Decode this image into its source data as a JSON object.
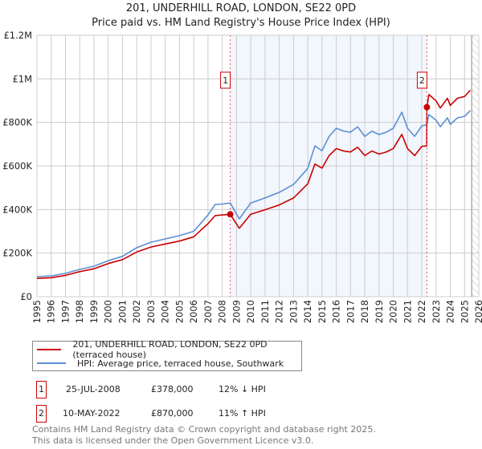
{
  "title": "201, UNDERHILL ROAD, LONDON, SE22 0PD",
  "subtitle": "Price paid vs. HM Land Registry's House Price Index (HPI)",
  "chart_data": {
    "type": "line",
    "title": "201, UNDERHILL ROAD, LONDON, SE22 0PD — Price paid vs. HM Land Registry's House Price Index (HPI)",
    "xlim": [
      1995,
      2026
    ],
    "ylim": [
      0,
      1200000
    ],
    "x_ticks": [
      1995,
      1996,
      1997,
      1998,
      1999,
      2000,
      2001,
      2002,
      2003,
      2004,
      2005,
      2006,
      2007,
      2008,
      2009,
      2010,
      2011,
      2012,
      2013,
      2014,
      2015,
      2016,
      2017,
      2018,
      2019,
      2020,
      2021,
      2022,
      2023,
      2024,
      2025,
      2026
    ],
    "y_ticks": [
      {
        "value": 0,
        "label": "£0"
      },
      {
        "value": 200000,
        "label": "£200K"
      },
      {
        "value": 400000,
        "label": "£400K"
      },
      {
        "value": 600000,
        "label": "£600K"
      },
      {
        "value": 800000,
        "label": "£800K"
      },
      {
        "value": 1000000,
        "label": "£1M"
      },
      {
        "value": 1200000,
        "label": "£1.2M"
      }
    ],
    "grid": true,
    "shaded_between_sales": [
      2008.56,
      2022.36
    ],
    "forecast_hatch_from": 2025.5,
    "series": [
      {
        "name": "201, UNDERHILL ROAD, LONDON, SE22 0PD (terraced house)",
        "color": "#cc0000",
        "points": [
          [
            1995,
            84
          ],
          [
            1996,
            87
          ],
          [
            1997,
            98
          ],
          [
            1998,
            115
          ],
          [
            1999,
            128
          ],
          [
            2000,
            152
          ],
          [
            2001,
            170
          ],
          [
            2002,
            205
          ],
          [
            2003,
            228
          ],
          [
            2004,
            242
          ],
          [
            2005,
            255
          ],
          [
            2006,
            275
          ],
          [
            2007,
            335
          ],
          [
            2007.5,
            372
          ],
          [
            2008,
            375
          ],
          [
            2008.56,
            378
          ],
          [
            2009.2,
            314
          ],
          [
            2010,
            378
          ],
          [
            2011,
            399
          ],
          [
            2012,
            421
          ],
          [
            2013,
            453
          ],
          [
            2014,
            518
          ],
          [
            2014.5,
            609
          ],
          [
            2015,
            590
          ],
          [
            2015.5,
            648
          ],
          [
            2016,
            680
          ],
          [
            2016.5,
            669
          ],
          [
            2017,
            664
          ],
          [
            2017.5,
            686
          ],
          [
            2018,
            648
          ],
          [
            2018.5,
            669
          ],
          [
            2019,
            655
          ],
          [
            2019.5,
            664
          ],
          [
            2020,
            680
          ],
          [
            2020.6,
            745
          ],
          [
            2021,
            680
          ],
          [
            2021.5,
            648
          ],
          [
            2022,
            690
          ],
          [
            2022.35,
            692
          ],
          [
            2022.36,
            870
          ],
          [
            2022.5,
            928
          ],
          [
            2023,
            899
          ],
          [
            2023.3,
            866
          ],
          [
            2023.8,
            911
          ],
          [
            2024,
            878
          ],
          [
            2024.5,
            911
          ],
          [
            2025,
            919
          ],
          [
            2025.4,
            948
          ]
        ]
      },
      {
        "name": "HPI: Average price, terraced house, Southwark",
        "color": "#5b8fd4",
        "points": [
          [
            1995,
            92
          ],
          [
            1996,
            95
          ],
          [
            1997,
            107
          ],
          [
            1998,
            125
          ],
          [
            1999,
            140
          ],
          [
            2000,
            165
          ],
          [
            2001,
            185
          ],
          [
            2002,
            225
          ],
          [
            2003,
            250
          ],
          [
            2004,
            265
          ],
          [
            2005,
            280
          ],
          [
            2006,
            300
          ],
          [
            2007,
            375
          ],
          [
            2007.5,
            423
          ],
          [
            2008,
            425
          ],
          [
            2008.56,
            430
          ],
          [
            2009.2,
            357
          ],
          [
            2010,
            430
          ],
          [
            2011,
            453
          ],
          [
            2012,
            479
          ],
          [
            2013,
            515
          ],
          [
            2014,
            589
          ],
          [
            2014.5,
            692
          ],
          [
            2015,
            670
          ],
          [
            2015.5,
            736
          ],
          [
            2016,
            773
          ],
          [
            2016.5,
            760
          ],
          [
            2017,
            755
          ],
          [
            2017.5,
            780
          ],
          [
            2018,
            736
          ],
          [
            2018.5,
            760
          ],
          [
            2019,
            744
          ],
          [
            2019.5,
            755
          ],
          [
            2020,
            773
          ],
          [
            2020.6,
            847
          ],
          [
            2021,
            773
          ],
          [
            2021.5,
            736
          ],
          [
            2022,
            784
          ],
          [
            2022.36,
            790
          ],
          [
            2022.5,
            836
          ],
          [
            2023,
            810
          ],
          [
            2023.3,
            780
          ],
          [
            2023.8,
            821
          ],
          [
            2024,
            791
          ],
          [
            2024.5,
            821
          ],
          [
            2025,
            828
          ],
          [
            2025.4,
            854
          ]
        ]
      }
    ],
    "value_units": "£ thousands in points",
    "annotations": [
      {
        "label": "1",
        "x": 2008.56,
        "value": 378000
      },
      {
        "label": "2",
        "x": 2022.36,
        "value": 870000
      }
    ]
  },
  "legend": [
    {
      "label": "201, UNDERHILL ROAD, LONDON, SE22 0PD (terraced house)",
      "color": "#cc0000"
    },
    {
      "label": "HPI: Average price, terraced house, Southwark",
      "color": "#5b8fd4"
    }
  ],
  "sales": [
    {
      "num": "1",
      "date": "25-JUL-2008",
      "price": "£378,000",
      "hpi": "12% ↓ HPI"
    },
    {
      "num": "2",
      "date": "10-MAY-2022",
      "price": "£870,000",
      "hpi": "11% ↑ HPI"
    }
  ],
  "footer": {
    "line1": "Contains HM Land Registry data © Crown copyright and database right 2025.",
    "line2": "This data is licensed under the Open Government Licence v3.0."
  }
}
